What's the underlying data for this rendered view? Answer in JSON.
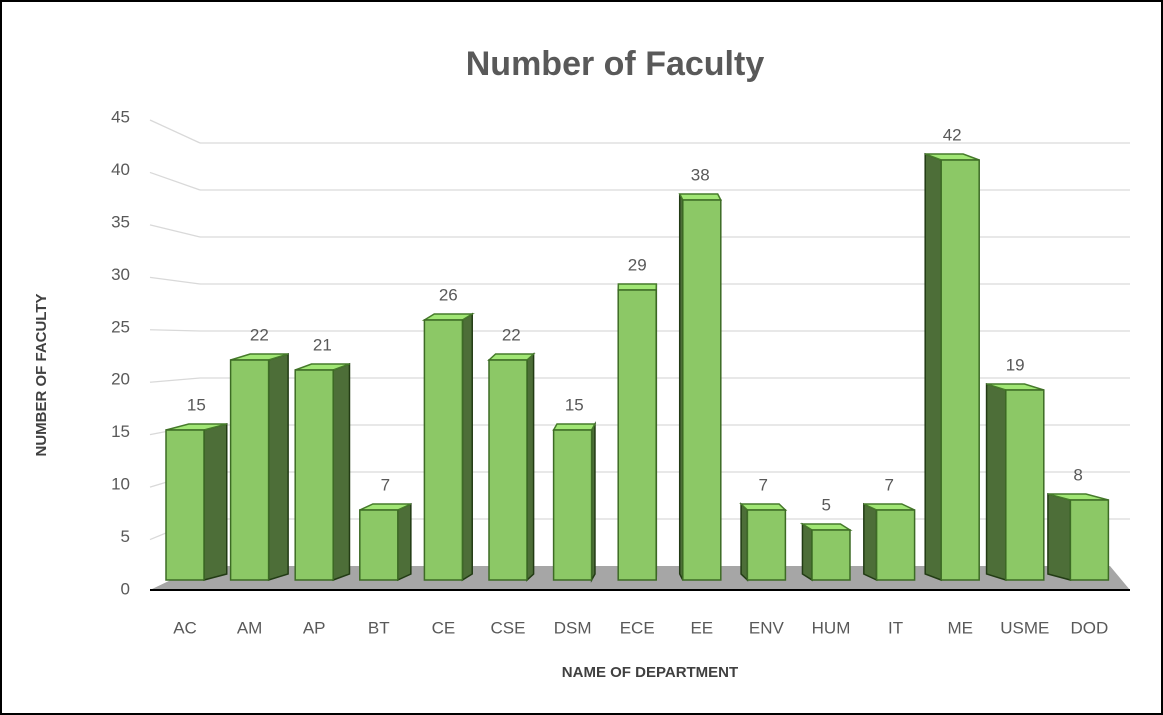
{
  "chart_data": {
    "type": "bar3d",
    "title": "Number of Faculty",
    "x_label": "NAME OF DEPARTMENT",
    "y_label": "NUMBER OF FACULTY",
    "categories": [
      "AC",
      "AM",
      "AP",
      "BT",
      "CE",
      "CSE",
      "DSM",
      "ECE",
      "EE",
      "ENV",
      "HUM",
      "IT",
      "ME",
      "USME",
      "DOD"
    ],
    "values": [
      15,
      22,
      21,
      7,
      26,
      22,
      15,
      29,
      38,
      7,
      5,
      7,
      42,
      19,
      8
    ],
    "color": "#8cc866",
    "ylim": [
      0,
      45
    ],
    "yticks": [
      0,
      5,
      10,
      15,
      20,
      25,
      30,
      35,
      40,
      45
    ],
    "grid": true
  }
}
